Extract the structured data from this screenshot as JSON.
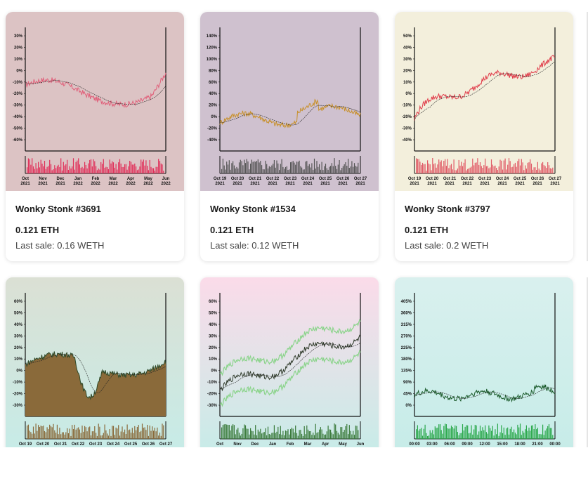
{
  "cards": [
    {
      "title": "Wonky Stonk #3691",
      "price": "0.121 ETH",
      "last_sale": "Last sale: 0.16 WETH",
      "bg": "#dcc3c4",
      "line_color": "#e0607a",
      "vol_color": "#e0305a",
      "y_ticks": [
        "30%",
        "20%",
        "10%",
        "0%",
        "-10%",
        "-20%",
        "-30%",
        "-40%",
        "-50%",
        "-60%"
      ],
      "x_ticks": [
        "Oct\n2021",
        "Nov\n2021",
        "Dec\n2021",
        "Jan\n2022",
        "Feb\n2022",
        "Mar\n2022",
        "Apr\n2022",
        "May\n2022",
        "Jun\n2022"
      ]
    },
    {
      "title": "Wonky Stonk #1534",
      "price": "0.121 ETH",
      "last_sale": "Last sale: 0.12 WETH",
      "bg": "#cfc1cf",
      "line_color": "#c8902a",
      "vol_color": "#555555",
      "y_ticks": [
        "140%",
        "120%",
        "100%",
        "80%",
        "60%",
        "40%",
        "20%",
        "0%",
        "-20%",
        "-40%"
      ],
      "x_ticks": [
        "Oct 19\n2021",
        "Oct 20\n2021",
        "Oct 21\n2021",
        "Oct 22\n2021",
        "Oct 23\n2021",
        "Oct 24\n2021",
        "Oct 25\n2021",
        "Oct 26\n2021",
        "Oct 27\n2021"
      ]
    },
    {
      "title": "Wonky Stonk #3797",
      "price": "0.121 ETH",
      "last_sale": "Last sale: 0.2 WETH",
      "bg": "#f3efdc",
      "line_color": "#e03c4a",
      "vol_color": "#e05a66",
      "y_ticks": [
        "50%",
        "40%",
        "30%",
        "20%",
        "10%",
        "0%",
        "-10%",
        "-20%",
        "-30%",
        "-40%"
      ],
      "x_ticks": [
        "Oct 19\n2021",
        "Oct 20\n2021",
        "Oct 21\n2021",
        "Oct 22\n2021",
        "Oct 23\n2021",
        "Oct 24\n2021",
        "Oct 25\n2021",
        "Oct 26\n2021",
        "Oct 27\n2021"
      ]
    },
    {
      "title": "",
      "price": "",
      "last_sale": "",
      "bg": "#dbe0d4",
      "line_color": "#2f4a2a",
      "vol_color": "#8a6a3a",
      "y_ticks": [
        "60%",
        "50%",
        "40%",
        "30%",
        "20%",
        "10%",
        "0%",
        "-10%",
        "-20%",
        "-30%"
      ],
      "x_ticks": [
        "Oct 19",
        "Oct 20",
        "Oct 21",
        "Oct 22",
        "Oct 23",
        "Oct 24",
        "Oct 25",
        "Oct 26",
        "Oct 27"
      ]
    },
    {
      "title": "",
      "price": "",
      "last_sale": "",
      "bg": "#fbdbe9",
      "line_color": "#2f3a2a",
      "vol_color": "#3a7a3a",
      "y_ticks": [
        "60%",
        "50%",
        "40%",
        "30%",
        "20%",
        "10%",
        "0%",
        "-10%",
        "-20%",
        "-30%"
      ],
      "x_ticks": [
        "Oct",
        "Nov",
        "Dec",
        "Jan",
        "Feb",
        "Mar",
        "Apr",
        "May",
        "Jun"
      ]
    },
    {
      "title": "",
      "price": "",
      "last_sale": "",
      "bg": "#d9f0ee",
      "line_color": "#1a5a2a",
      "vol_color": "#2aa84a",
      "y_ticks": [
        "405%",
        "360%",
        "315%",
        "270%",
        "225%",
        "180%",
        "135%",
        "90%",
        "45%",
        "0%"
      ],
      "x_ticks": [
        "00:00",
        "03:00",
        "06:00",
        "09:00",
        "12:00",
        "15:00",
        "18:00",
        "21:00",
        "00:00"
      ]
    }
  ]
}
